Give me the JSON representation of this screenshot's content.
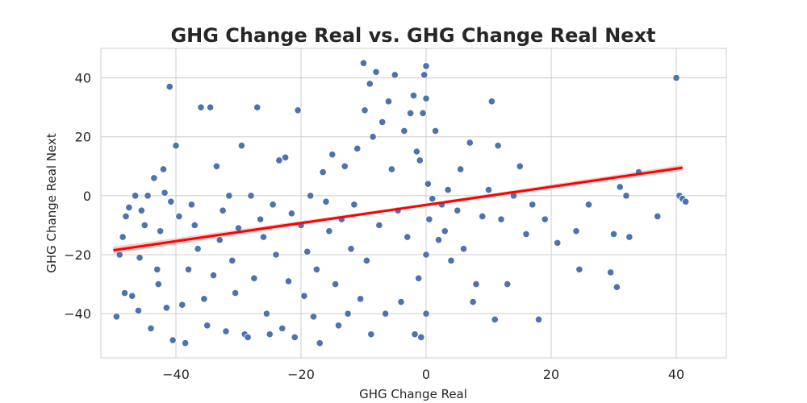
{
  "chart_data": {
    "type": "scatter",
    "title": "GHG Change Real vs. GHG Change Real Next",
    "xlabel": "GHG Change Real",
    "ylabel": "GHG Change Real Next",
    "xlim": [
      -52,
      48
    ],
    "ylim": [
      -55,
      50
    ],
    "x_ticks": [
      -40,
      -20,
      0,
      20,
      40
    ],
    "y_ticks": [
      -40,
      -20,
      0,
      20,
      40
    ],
    "x_tick_labels": [
      "−40",
      "−20",
      "0",
      "20",
      "40"
    ],
    "y_tick_labels": [
      "−40",
      "−20",
      "0",
      "20",
      "40"
    ],
    "grid": true,
    "colors": {
      "points": "#4C72B0",
      "regression": "#ff0000",
      "ci_band": "#f4a6a6",
      "grid": "#cccccc",
      "frame": "#cccccc"
    },
    "regression": {
      "x": [
        -50,
        41
      ],
      "y": [
        -18.5,
        9.5
      ]
    },
    "series": [
      {
        "points": [
          [
            -49.5,
            -41
          ],
          [
            -49,
            -20
          ],
          [
            -48.5,
            -14
          ],
          [
            -48.2,
            -33
          ],
          [
            -48,
            -7
          ],
          [
            -47.5,
            -4
          ],
          [
            -47,
            -34
          ],
          [
            -46.5,
            0
          ],
          [
            -46,
            -39
          ],
          [
            -45.8,
            -21
          ],
          [
            -45.5,
            -5
          ],
          [
            -45,
            -10
          ],
          [
            -44.5,
            0
          ],
          [
            -44,
            -45
          ],
          [
            -43.5,
            6
          ],
          [
            -43,
            -25
          ],
          [
            -42.8,
            -30
          ],
          [
            -42.5,
            -12
          ],
          [
            -42,
            9
          ],
          [
            -41.8,
            1
          ],
          [
            -41.5,
            -38
          ],
          [
            -41,
            37
          ],
          [
            -40.8,
            -2
          ],
          [
            -40.5,
            -49
          ],
          [
            -40,
            17
          ],
          [
            -39.5,
            -7
          ],
          [
            -39,
            -37
          ],
          [
            -38.5,
            -50
          ],
          [
            -38,
            -25
          ],
          [
            -37.5,
            -3
          ],
          [
            -37,
            -10
          ],
          [
            -36.5,
            -18
          ],
          [
            -36,
            30
          ],
          [
            -35.5,
            -35
          ],
          [
            -35,
            -44
          ],
          [
            -34.5,
            30
          ],
          [
            -34,
            -27
          ],
          [
            -33.5,
            10
          ],
          [
            -33,
            -15
          ],
          [
            -32.5,
            -5
          ],
          [
            -32,
            -46
          ],
          [
            -31.5,
            0
          ],
          [
            -31,
            -22
          ],
          [
            -30.5,
            -33
          ],
          [
            -30,
            -11
          ],
          [
            -29.5,
            17
          ],
          [
            -29,
            -47
          ],
          [
            -28.5,
            -48
          ],
          [
            -28,
            0
          ],
          [
            -27.5,
            -28
          ],
          [
            -27,
            30
          ],
          [
            -26.5,
            -8
          ],
          [
            -26,
            -14
          ],
          [
            -25.5,
            -40
          ],
          [
            -25,
            -47
          ],
          [
            -24.5,
            -3
          ],
          [
            -24,
            -20
          ],
          [
            -23.5,
            12
          ],
          [
            -23,
            -45
          ],
          [
            -22.5,
            13
          ],
          [
            -22,
            -29
          ],
          [
            -21.5,
            -6
          ],
          [
            -21,
            -48
          ],
          [
            -20.5,
            29
          ],
          [
            -20,
            -10
          ],
          [
            -19.5,
            -34
          ],
          [
            -19,
            -19
          ],
          [
            -18.5,
            0
          ],
          [
            -18,
            -41
          ],
          [
            -17.5,
            -25
          ],
          [
            -17,
            -50
          ],
          [
            -16.5,
            8
          ],
          [
            -16,
            -2
          ],
          [
            -15.5,
            -12
          ],
          [
            -15,
            14
          ],
          [
            -14.5,
            -30
          ],
          [
            -14,
            -44
          ],
          [
            -13.5,
            -8
          ],
          [
            -13,
            10
          ],
          [
            -12.5,
            -40
          ],
          [
            -12,
            -18
          ],
          [
            -11.5,
            -3
          ],
          [
            -11,
            16
          ],
          [
            -10.5,
            -35
          ],
          [
            -10,
            45
          ],
          [
            -9.8,
            29
          ],
          [
            -9.5,
            -22
          ],
          [
            -9,
            38
          ],
          [
            -8.8,
            -47
          ],
          [
            -8.5,
            20
          ],
          [
            -8,
            42
          ],
          [
            -7.5,
            -10
          ],
          [
            -7,
            25
          ],
          [
            -6.5,
            -40
          ],
          [
            -6,
            32
          ],
          [
            -5.5,
            9
          ],
          [
            -5,
            41
          ],
          [
            -4.5,
            -5
          ],
          [
            -4,
            -36
          ],
          [
            -3.5,
            22
          ],
          [
            -3,
            -14
          ],
          [
            -2.5,
            28
          ],
          [
            -2,
            34
          ],
          [
            -1.8,
            -47
          ],
          [
            -1.5,
            15
          ],
          [
            -1.2,
            -28
          ],
          [
            -1,
            12
          ],
          [
            -0.8,
            -48
          ],
          [
            -0.5,
            28
          ],
          [
            -0.3,
            41
          ],
          [
            0,
            44
          ],
          [
            0,
            33
          ],
          [
            0,
            -20
          ],
          [
            0,
            -40
          ],
          [
            0.3,
            4
          ],
          [
            0.5,
            -8
          ],
          [
            1,
            -1
          ],
          [
            1.5,
            22
          ],
          [
            2,
            -15
          ],
          [
            2.5,
            -3
          ],
          [
            3,
            -12
          ],
          [
            3.5,
            2
          ],
          [
            4,
            -22
          ],
          [
            5,
            -5
          ],
          [
            5.5,
            9
          ],
          [
            6,
            -18
          ],
          [
            7,
            18
          ],
          [
            7.5,
            -36
          ],
          [
            8,
            -30
          ],
          [
            9,
            -7
          ],
          [
            10,
            2
          ],
          [
            10.5,
            32
          ],
          [
            11,
            -42
          ],
          [
            11.5,
            17
          ],
          [
            12,
            -8
          ],
          [
            13,
            -30
          ],
          [
            14,
            0
          ],
          [
            15,
            10
          ],
          [
            16,
            -13
          ],
          [
            17,
            -3
          ],
          [
            18,
            -42
          ],
          [
            19,
            -8
          ],
          [
            21,
            -16
          ],
          [
            24,
            -12
          ],
          [
            24.5,
            -25
          ],
          [
            26,
            -3
          ],
          [
            29.5,
            -26
          ],
          [
            30,
            -13
          ],
          [
            30.5,
            -31
          ],
          [
            31,
            3
          ],
          [
            32,
            0
          ],
          [
            32.5,
            -14
          ],
          [
            34,
            8
          ],
          [
            37,
            -7
          ],
          [
            40,
            40
          ],
          [
            40.5,
            0
          ],
          [
            41,
            -1
          ],
          [
            41.5,
            -2
          ]
        ]
      }
    ]
  }
}
